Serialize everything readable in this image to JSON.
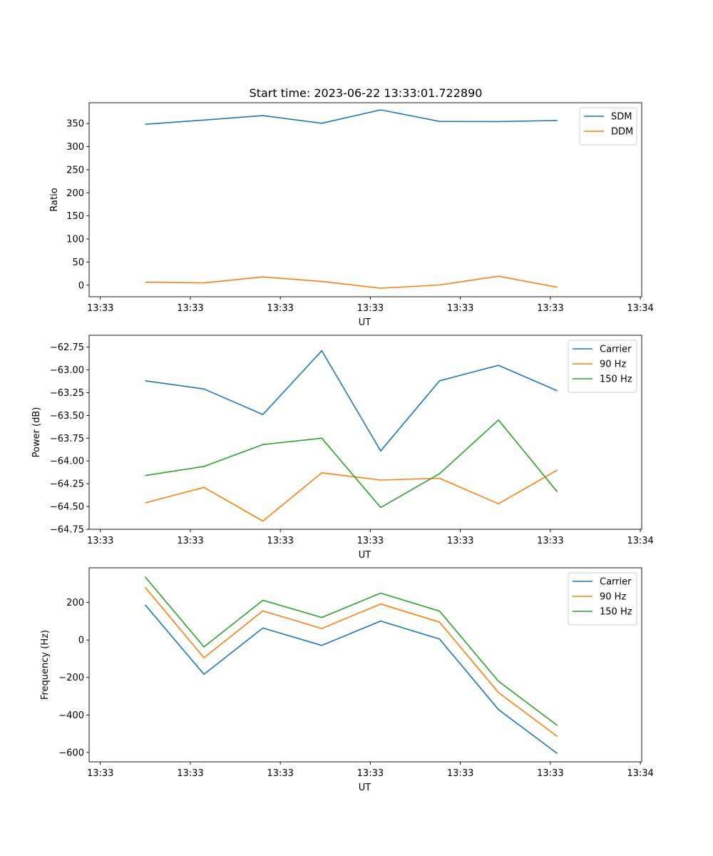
{
  "figure_title": "Start time: 2023-06-22 13:33:01.722890",
  "colors": {
    "blue": "#1f77b4",
    "orange": "#ff7f0e",
    "green": "#2ca02c"
  },
  "chart_data": [
    {
      "type": "line",
      "xlabel": "UT",
      "ylabel": "Ratio",
      "x_tick_labels": [
        "13:33",
        "13:33",
        "13:33",
        "13:33",
        "13:33",
        "13:33",
        "13:34"
      ],
      "ylim": [
        -25,
        395
      ],
      "yticks": [
        0,
        50,
        100,
        150,
        200,
        250,
        300,
        350
      ],
      "y_tick_labels": [
        "0",
        "50",
        "100",
        "150",
        "200",
        "250",
        "300",
        "350"
      ],
      "legend": "top-right",
      "grid": false,
      "series": [
        {
          "name": "SDM",
          "color": "#1f77b4",
          "values": [
            348.4,
            357.5,
            367.0,
            350.5,
            379.5,
            354.5,
            354.3,
            356.5
          ]
        },
        {
          "name": "DDM",
          "color": "#ff7f0e",
          "values": [
            6.5,
            5.0,
            18.0,
            8.0,
            -6.5,
            0.5,
            19.5,
            -4.5
          ]
        }
      ]
    },
    {
      "type": "line",
      "xlabel": "UT",
      "ylabel": "Power (dB)",
      "x_tick_labels": [
        "13:33",
        "13:33",
        "13:33",
        "13:33",
        "13:33",
        "13:33",
        "13:34"
      ],
      "ylim": [
        -64.75,
        -62.62
      ],
      "yticks": [
        -64.75,
        -64.5,
        -64.25,
        -64.0,
        -63.75,
        -63.5,
        -63.25,
        -63.0,
        -62.75
      ],
      "y_tick_labels": [
        "−64.75",
        "−64.50",
        "−64.25",
        "−64.00",
        "−63.75",
        "−63.50",
        "−63.25",
        "−63.00",
        "−62.75"
      ],
      "legend": "top-right",
      "grid": false,
      "series": [
        {
          "name": "Carrier",
          "color": "#1f77b4",
          "values": [
            -63.12,
            -63.21,
            -63.49,
            -62.79,
            -63.89,
            -63.12,
            -62.95,
            -63.23
          ]
        },
        {
          "name": "90 Hz",
          "color": "#ff7f0e",
          "values": [
            -64.46,
            -64.29,
            -64.66,
            -64.13,
            -64.21,
            -64.19,
            -64.47,
            -64.1
          ]
        },
        {
          "name": "150 Hz",
          "color": "#2ca02c",
          "values": [
            -64.16,
            -64.06,
            -63.82,
            -63.75,
            -64.51,
            -64.14,
            -63.55,
            -64.34
          ]
        }
      ]
    },
    {
      "type": "line",
      "xlabel": "UT",
      "ylabel": "Frequency (Hz)",
      "x_tick_labels": [
        "13:33",
        "13:33",
        "13:33",
        "13:33",
        "13:33",
        "13:33",
        "13:34"
      ],
      "ylim": [
        -650,
        385
      ],
      "yticks": [
        -600,
        -400,
        -200,
        0,
        200
      ],
      "y_tick_labels": [
        "−600",
        "−400",
        "−200",
        "0",
        "200"
      ],
      "legend": "top-right",
      "grid": false,
      "series": [
        {
          "name": "Carrier",
          "color": "#1f77b4",
          "values": [
            188,
            -183,
            64,
            -29,
            101,
            5,
            -371,
            -606
          ]
        },
        {
          "name": "90 Hz",
          "color": "#ff7f0e",
          "values": [
            281,
            -95,
            155,
            61,
            192,
            95,
            -280,
            -515
          ]
        },
        {
          "name": "150 Hz",
          "color": "#2ca02c",
          "values": [
            337,
            -37,
            212,
            120,
            250,
            154,
            -220,
            -456
          ]
        }
      ]
    }
  ]
}
